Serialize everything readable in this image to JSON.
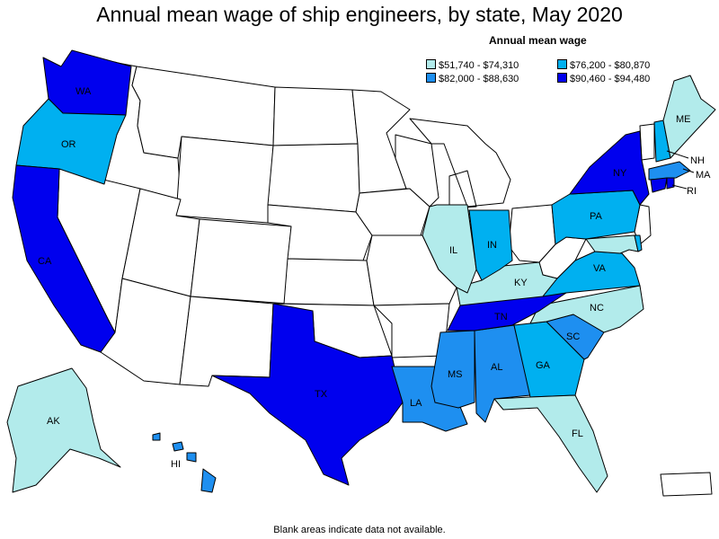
{
  "title": "Annual mean wage of ship engineers, by state, May 2020",
  "legend": {
    "title": "Annual mean wage",
    "items": [
      {
        "range": "$51,740 - $74,310",
        "color": "#b2ebeb"
      },
      {
        "range": "$76,200 - $80,870",
        "color": "#00b0f0"
      },
      {
        "range": "$82,000 - $88,630",
        "color": "#1e8ff0"
      },
      {
        "range": "$90,460 - $94,480",
        "color": "#0000ee"
      }
    ]
  },
  "colors": {
    "blank": "#ffffff",
    "border": "#000000"
  },
  "states": {
    "WA": {
      "label": "WA",
      "tier": 4
    },
    "OR": {
      "label": "OR",
      "tier": 2
    },
    "CA": {
      "label": "CA",
      "tier": 4
    },
    "AK": {
      "label": "AK",
      "tier": 1
    },
    "HI": {
      "label": "HI",
      "tier": 3
    },
    "TX": {
      "label": "TX",
      "tier": 4
    },
    "LA": {
      "label": "LA",
      "tier": 3
    },
    "MS": {
      "label": "MS",
      "tier": 3
    },
    "AL": {
      "label": "AL",
      "tier": 3
    },
    "GA": {
      "label": "GA",
      "tier": 2
    },
    "FL": {
      "label": "FL",
      "tier": 1
    },
    "SC": {
      "label": "SC",
      "tier": 3
    },
    "NC": {
      "label": "NC",
      "tier": 1
    },
    "TN": {
      "label": "TN",
      "tier": 4
    },
    "KY": {
      "label": "KY",
      "tier": 1
    },
    "VA": {
      "label": "VA",
      "tier": 2
    },
    "IL": {
      "label": "IL",
      "tier": 1
    },
    "IN": {
      "label": "IN",
      "tier": 2
    },
    "PA": {
      "label": "PA",
      "tier": 2
    },
    "NY": {
      "label": "NY",
      "tier": 4
    },
    "ME": {
      "label": "ME",
      "tier": 1
    },
    "NH": {
      "label": "NH",
      "tier": 2
    },
    "MA": {
      "label": "MA",
      "tier": 3
    },
    "RI": {
      "label": "RI",
      "tier": 4
    },
    "CT": {
      "tier": 4
    },
    "DE": {
      "tier": 2
    },
    "MD": {
      "tier": 1
    },
    "NJ": {
      "tier": 0
    },
    "PR": {
      "tier": 0
    }
  },
  "footnote": "Blank areas indicate data not available."
}
